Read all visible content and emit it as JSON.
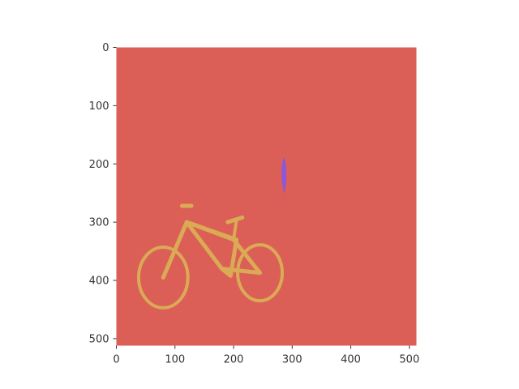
{
  "chart_data": {
    "type": "heatmap",
    "title": "",
    "xlabel": "",
    "ylabel": "",
    "xlim": [
      0,
      512
    ],
    "ylim": [
      512,
      0
    ],
    "x_ticks": [
      "0",
      "100",
      "200",
      "300",
      "400",
      "500"
    ],
    "y_ticks": [
      "0",
      "100",
      "200",
      "300",
      "400",
      "500"
    ],
    "x_tick_values": [
      0,
      100,
      200,
      300,
      400,
      500
    ],
    "y_tick_values": [
      0,
      100,
      200,
      300,
      400,
      500
    ],
    "grid": false,
    "colors": {
      "background_class": "#db5f57",
      "bicycle_class": "#dbaa55",
      "person_class": "#8c57db"
    },
    "regions": [
      {
        "class": "background",
        "color": "#db5f57",
        "bbox_data": [
          0,
          0,
          512,
          512
        ]
      },
      {
        "class": "person",
        "color": "#8c57db",
        "points": [
          [
            286,
            188
          ],
          [
            289,
            198
          ],
          [
            290,
            212
          ],
          [
            290,
            230
          ],
          [
            288,
            244
          ],
          [
            286,
            252
          ],
          [
            284,
            240
          ],
          [
            282,
            226
          ],
          [
            282,
            206
          ],
          [
            284,
            194
          ]
        ]
      },
      {
        "class": "bicycle",
        "color": "#dbaa55",
        "rear_wheel": {
          "cx": 80,
          "cy": 395,
          "rx": 42,
          "ry": 52
        },
        "front_wheel": {
          "cx": 245,
          "cy": 387,
          "rx": 38,
          "ry": 48
        },
        "frame": [
          [
            80,
            395
          ],
          [
            120,
            300
          ],
          [
            200,
            330
          ],
          [
            245,
            387
          ],
          [
            180,
            380
          ],
          [
            120,
            300
          ],
          [
            205,
            330
          ],
          [
            195,
            392
          ],
          [
            180,
            380
          ]
        ],
        "seat": [
          [
            112,
            272
          ],
          [
            128,
            272
          ]
        ],
        "handlebar": [
          [
            190,
            300
          ],
          [
            215,
            292
          ]
        ],
        "handle_stem": [
          [
            205,
            296
          ],
          [
            200,
            330
          ]
        ]
      }
    ]
  }
}
